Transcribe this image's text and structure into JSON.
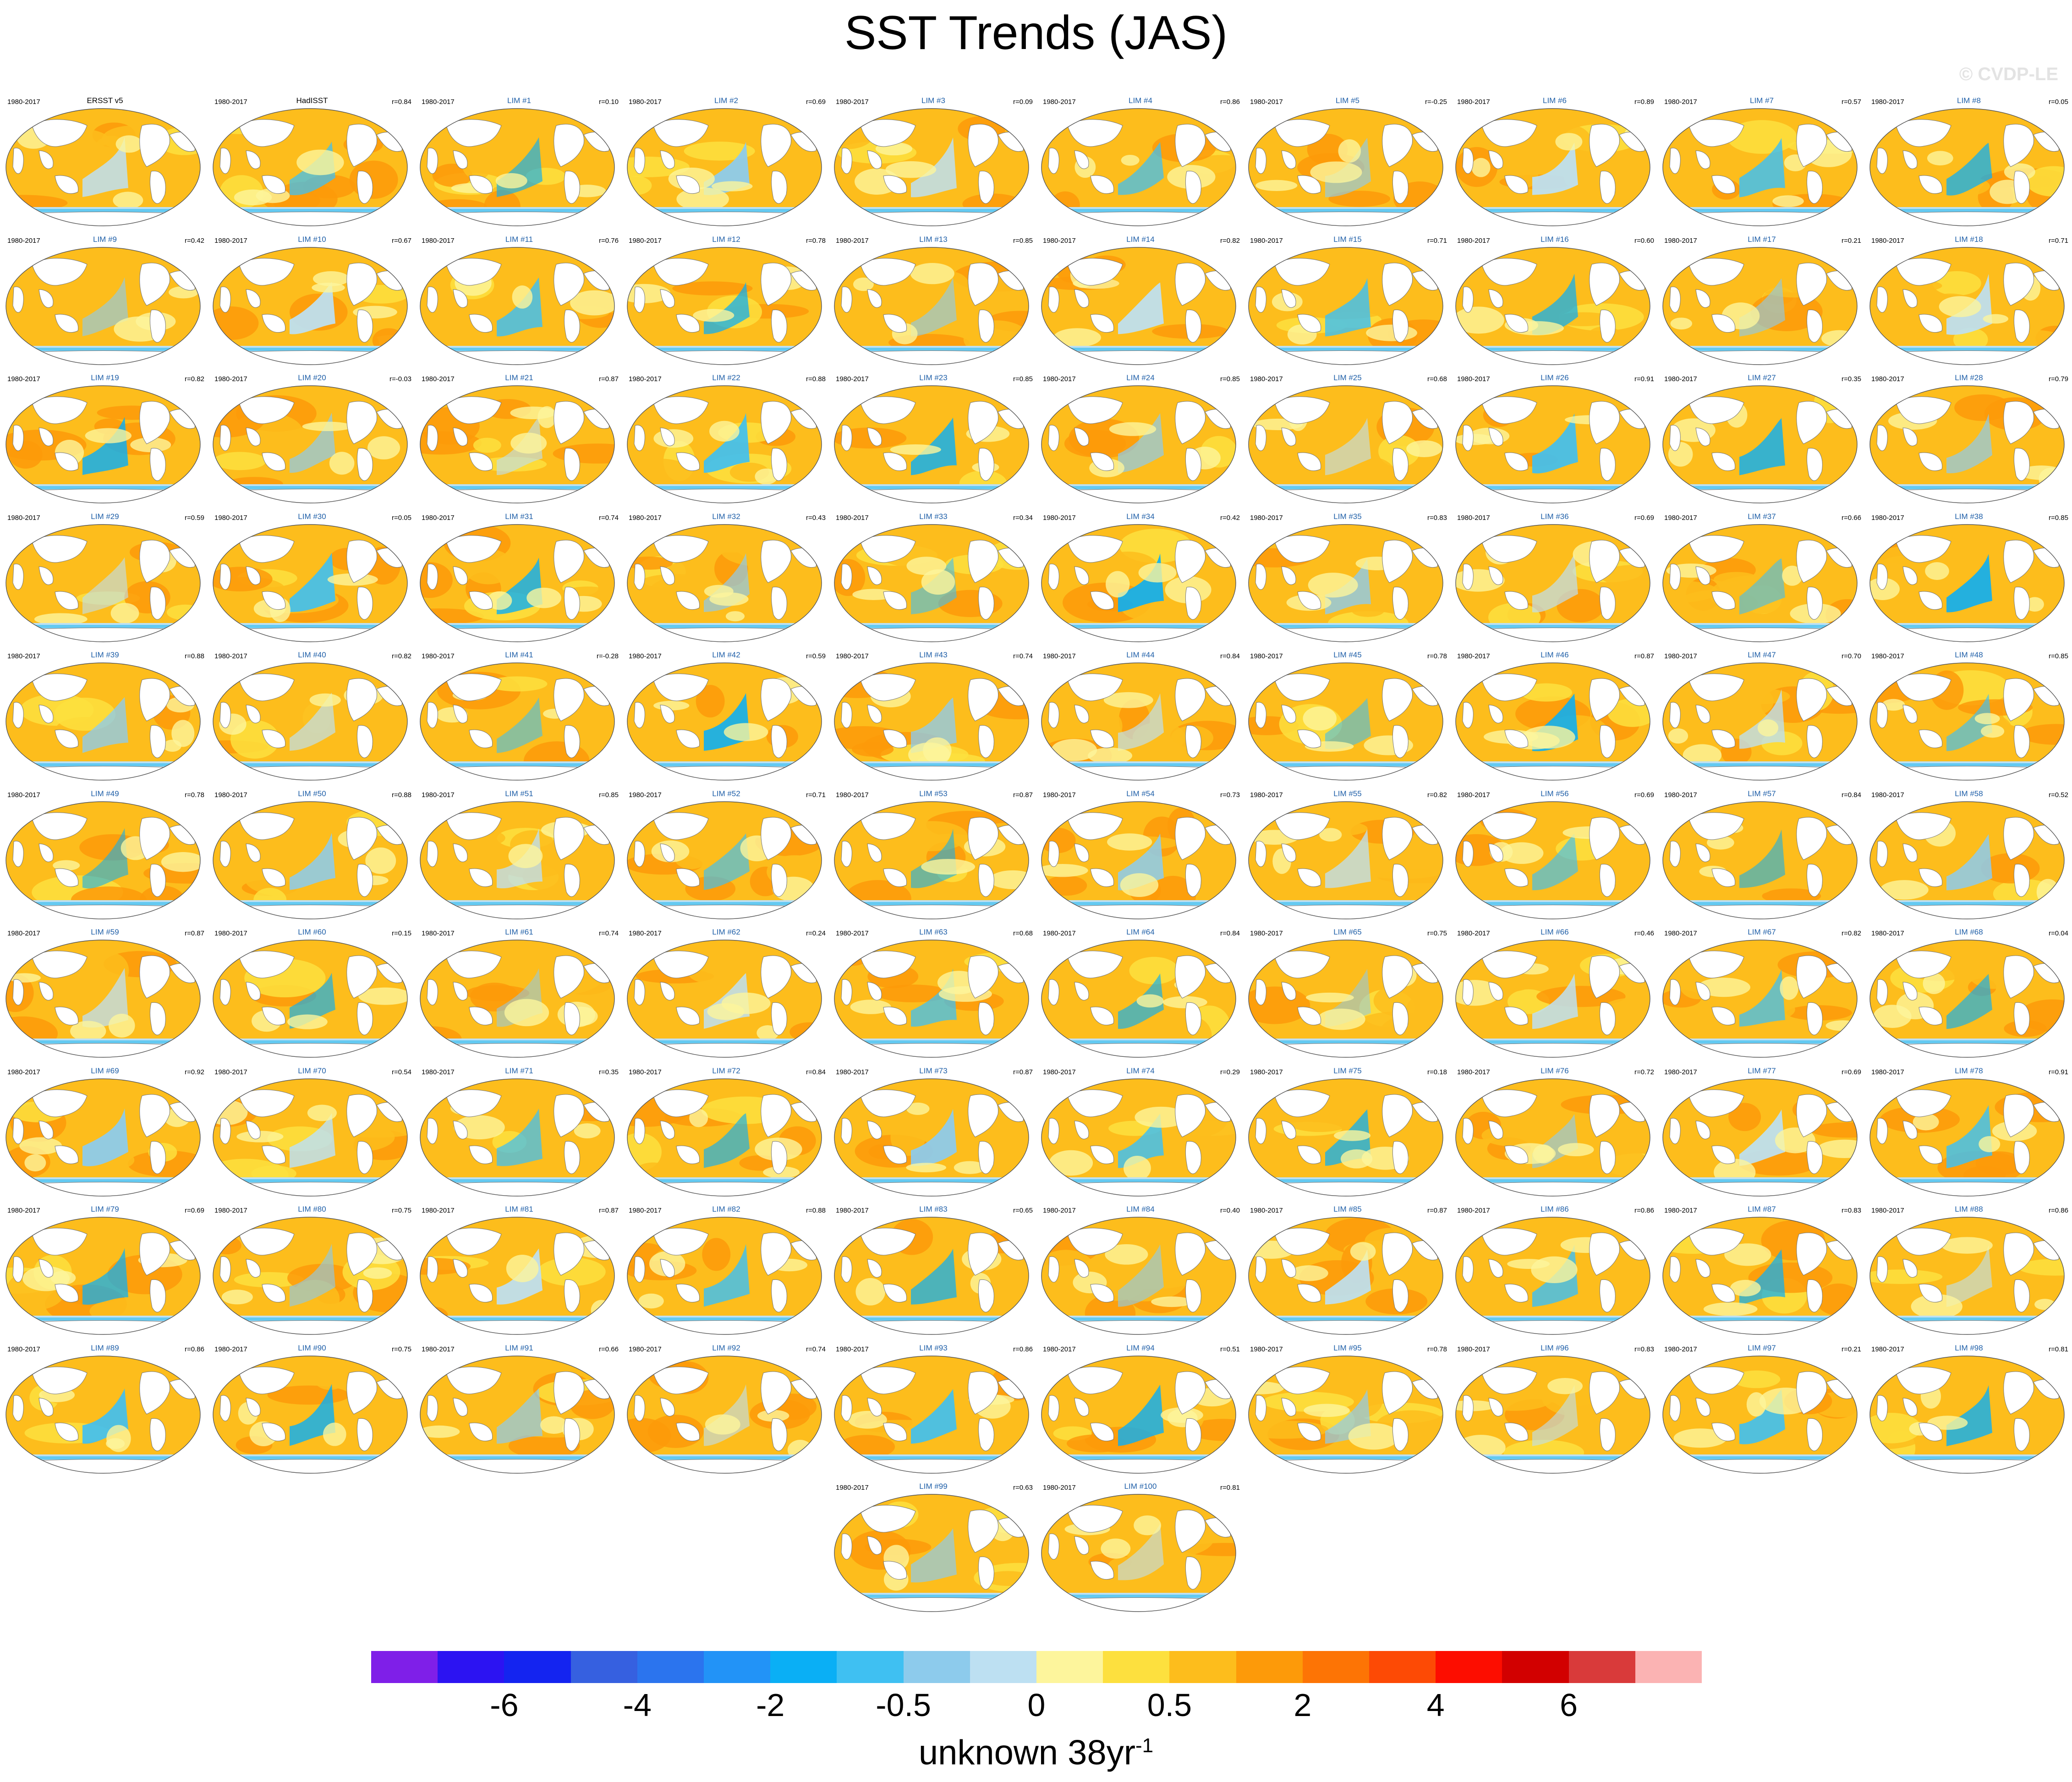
{
  "title": "SST Trends (JAS)",
  "watermark": "© CVDP-LE",
  "period": "1980-2017",
  "panels": [
    {
      "label": "ERSST v5",
      "r": "",
      "obs": true
    },
    {
      "label": "HadISST",
      "r": "r=0.84",
      "obs": true
    },
    {
      "label": "LIM #1",
      "r": "r=0.10"
    },
    {
      "label": "LIM #2",
      "r": "r=0.69"
    },
    {
      "label": "LIM #3",
      "r": "r=0.09"
    },
    {
      "label": "LIM #4",
      "r": "r=0.86"
    },
    {
      "label": "LIM #5",
      "r": "r=-0.25"
    },
    {
      "label": "LIM #6",
      "r": "r=0.89"
    },
    {
      "label": "LIM #7",
      "r": "r=0.57"
    },
    {
      "label": "LIM #8",
      "r": "r=0.05"
    },
    {
      "label": "LIM #9",
      "r": "r=0.42"
    },
    {
      "label": "LIM #10",
      "r": "r=0.67"
    },
    {
      "label": "LIM #11",
      "r": "r=0.76"
    },
    {
      "label": "LIM #12",
      "r": "r=0.78"
    },
    {
      "label": "LIM #13",
      "r": "r=0.85"
    },
    {
      "label": "LIM #14",
      "r": "r=0.82"
    },
    {
      "label": "LIM #15",
      "r": "r=0.71"
    },
    {
      "label": "LIM #16",
      "r": "r=0.60"
    },
    {
      "label": "LIM #17",
      "r": "r=0.21"
    },
    {
      "label": "LIM #18",
      "r": "r=0.71"
    },
    {
      "label": "LIM #19",
      "r": "r=0.82"
    },
    {
      "label": "LIM #20",
      "r": "r=-0.03"
    },
    {
      "label": "LIM #21",
      "r": "r=0.87"
    },
    {
      "label": "LIM #22",
      "r": "r=0.88"
    },
    {
      "label": "LIM #23",
      "r": "r=0.85"
    },
    {
      "label": "LIM #24",
      "r": "r=0.85"
    },
    {
      "label": "LIM #25",
      "r": "r=0.68"
    },
    {
      "label": "LIM #26",
      "r": "r=0.91"
    },
    {
      "label": "LIM #27",
      "r": "r=0.35"
    },
    {
      "label": "LIM #28",
      "r": "r=0.79"
    },
    {
      "label": "LIM #29",
      "r": "r=0.59"
    },
    {
      "label": "LIM #30",
      "r": "r=0.05"
    },
    {
      "label": "LIM #31",
      "r": "r=0.74"
    },
    {
      "label": "LIM #32",
      "r": "r=0.43"
    },
    {
      "label": "LIM #33",
      "r": "r=0.34"
    },
    {
      "label": "LIM #34",
      "r": "r=0.42"
    },
    {
      "label": "LIM #35",
      "r": "r=0.83"
    },
    {
      "label": "LIM #36",
      "r": "r=0.69"
    },
    {
      "label": "LIM #37",
      "r": "r=0.66"
    },
    {
      "label": "LIM #38",
      "r": "r=0.85"
    },
    {
      "label": "LIM #39",
      "r": "r=0.88"
    },
    {
      "label": "LIM #40",
      "r": "r=0.82"
    },
    {
      "label": "LIM #41",
      "r": "r=-0.28"
    },
    {
      "label": "LIM #42",
      "r": "r=0.59"
    },
    {
      "label": "LIM #43",
      "r": "r=0.74"
    },
    {
      "label": "LIM #44",
      "r": "r=0.84"
    },
    {
      "label": "LIM #45",
      "r": "r=0.78"
    },
    {
      "label": "LIM #46",
      "r": "r=0.87"
    },
    {
      "label": "LIM #47",
      "r": "r=0.70"
    },
    {
      "label": "LIM #48",
      "r": "r=0.85"
    },
    {
      "label": "LIM #49",
      "r": "r=0.78"
    },
    {
      "label": "LIM #50",
      "r": "r=0.88"
    },
    {
      "label": "LIM #51",
      "r": "r=0.85"
    },
    {
      "label": "LIM #52",
      "r": "r=0.71"
    },
    {
      "label": "LIM #53",
      "r": "r=0.87"
    },
    {
      "label": "LIM #54",
      "r": "r=0.73"
    },
    {
      "label": "LIM #55",
      "r": "r=0.82"
    },
    {
      "label": "LIM #56",
      "r": "r=0.69"
    },
    {
      "label": "LIM #57",
      "r": "r=0.84"
    },
    {
      "label": "LIM #58",
      "r": "r=0.52"
    },
    {
      "label": "LIM #59",
      "r": "r=0.87"
    },
    {
      "label": "LIM #60",
      "r": "r=0.15"
    },
    {
      "label": "LIM #61",
      "r": "r=0.74"
    },
    {
      "label": "LIM #62",
      "r": "r=0.24"
    },
    {
      "label": "LIM #63",
      "r": "r=0.68"
    },
    {
      "label": "LIM #64",
      "r": "r=0.84"
    },
    {
      "label": "LIM #65",
      "r": "r=0.75"
    },
    {
      "label": "LIM #66",
      "r": "r=0.46"
    },
    {
      "label": "LIM #67",
      "r": "r=0.82"
    },
    {
      "label": "LIM #68",
      "r": "r=0.04"
    },
    {
      "label": "LIM #69",
      "r": "r=0.92"
    },
    {
      "label": "LIM #70",
      "r": "r=0.54"
    },
    {
      "label": "LIM #71",
      "r": "r=0.35"
    },
    {
      "label": "LIM #72",
      "r": "r=0.84"
    },
    {
      "label": "LIM #73",
      "r": "r=0.87"
    },
    {
      "label": "LIM #74",
      "r": "r=0.29"
    },
    {
      "label": "LIM #75",
      "r": "r=0.18"
    },
    {
      "label": "LIM #76",
      "r": "r=0.72"
    },
    {
      "label": "LIM #77",
      "r": "r=0.69"
    },
    {
      "label": "LIM #78",
      "r": "r=0.91"
    },
    {
      "label": "LIM #79",
      "r": "r=0.69"
    },
    {
      "label": "LIM #80",
      "r": "r=0.75"
    },
    {
      "label": "LIM #81",
      "r": "r=0.87"
    },
    {
      "label": "LIM #82",
      "r": "r=0.88"
    },
    {
      "label": "LIM #83",
      "r": "r=0.65"
    },
    {
      "label": "LIM #84",
      "r": "r=0.40"
    },
    {
      "label": "LIM #85",
      "r": "r=0.87"
    },
    {
      "label": "LIM #86",
      "r": "r=0.86"
    },
    {
      "label": "LIM #87",
      "r": "r=0.83"
    },
    {
      "label": "LIM #88",
      "r": "r=0.86"
    },
    {
      "label": "LIM #89",
      "r": "r=0.86"
    },
    {
      "label": "LIM #90",
      "r": "r=0.75"
    },
    {
      "label": "LIM #91",
      "r": "r=0.66"
    },
    {
      "label": "LIM #92",
      "r": "r=0.74"
    },
    {
      "label": "LIM #93",
      "r": "r=0.86"
    },
    {
      "label": "LIM #94",
      "r": "r=0.51"
    },
    {
      "label": "LIM #95",
      "r": "r=0.78"
    },
    {
      "label": "LIM #96",
      "r": "r=0.83"
    },
    {
      "label": "LIM #97",
      "r": "r=0.21"
    },
    {
      "label": "LIM #98",
      "r": "r=0.81"
    },
    {
      "label": "LIM #99",
      "r": "r=0.63"
    },
    {
      "label": "LIM #100",
      "r": "r=0.81"
    }
  ],
  "colorbar": {
    "colors": [
      "#7f1fe8",
      "#2c13f2",
      "#1424f0",
      "#3660e0",
      "#2b74ee",
      "#2293f7",
      "#0aaff5",
      "#3fc0f2",
      "#8dcbec",
      "#bde0f2",
      "#fdf59c",
      "#fde03e",
      "#fdbd1c",
      "#fd9a09",
      "#fd7405",
      "#fd4a05",
      "#fd0d00",
      "#d20000",
      "#d93a3a",
      "#fbb3b3"
    ],
    "tick_labels": [
      "-6",
      "-4",
      "-2",
      "-0.5",
      "0",
      "0.5",
      "2",
      "4",
      "6"
    ],
    "units_text": "unknown 38yr",
    "units_exponent": "-1"
  }
}
